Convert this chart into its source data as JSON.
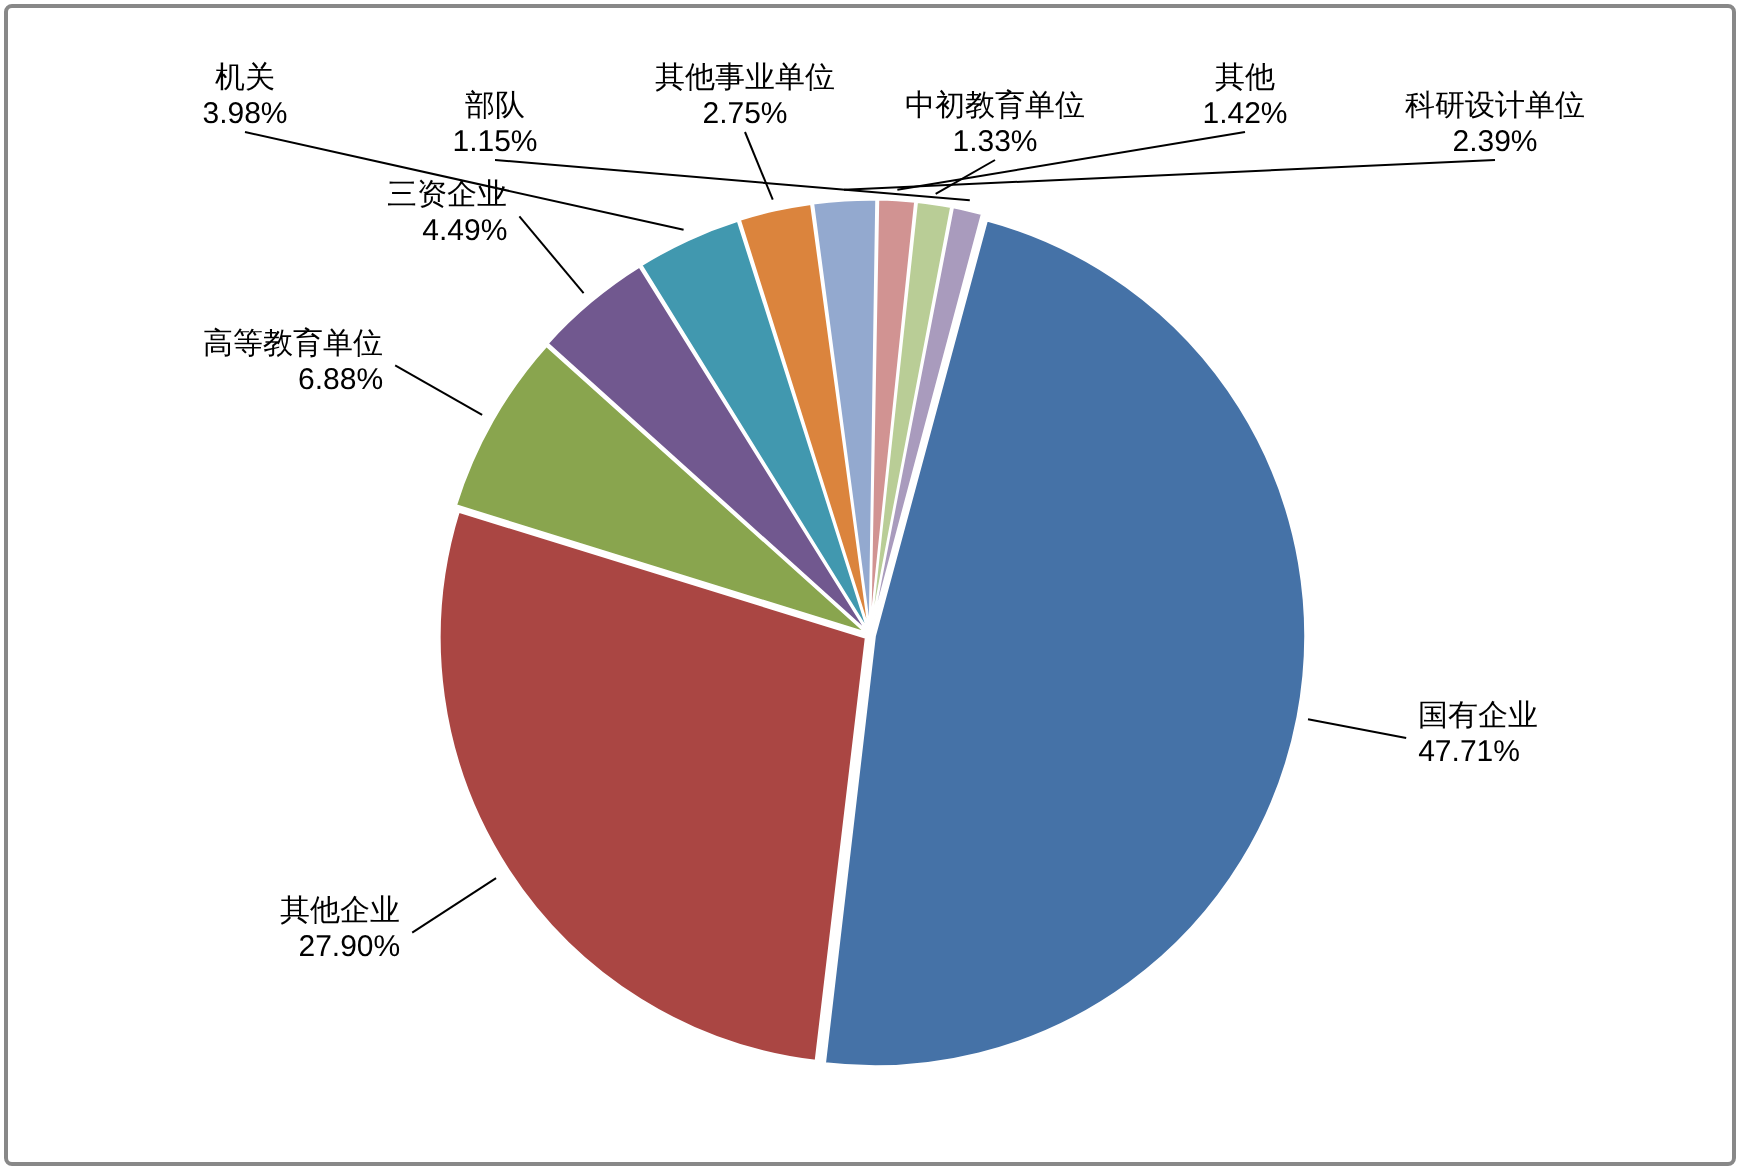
{
  "chart_data": {
    "type": "pie",
    "categories": [
      "国有企业",
      "其他企业",
      "高等教育单位",
      "三资企业",
      "机关",
      "其他事业单位",
      "科研设计单位",
      "其他",
      "中初教育单位",
      "部队"
    ],
    "values": [
      47.71,
      27.9,
      6.88,
      4.49,
      3.98,
      2.75,
      2.39,
      1.42,
      1.33,
      1.15
    ],
    "value_labels": [
      "47.71%",
      "27.90%",
      "6.88%",
      "4.49%",
      "3.98%",
      "2.75%",
      "2.39%",
      "1.42%",
      "1.33%",
      "1.15%"
    ],
    "colors": [
      "#4572a7",
      "#aa4643",
      "#89a54e",
      "#71588f",
      "#4198af",
      "#db843d",
      "#93a9cf",
      "#d19392",
      "#b9cd96",
      "#a99bbd"
    ],
    "legend": false
  }
}
